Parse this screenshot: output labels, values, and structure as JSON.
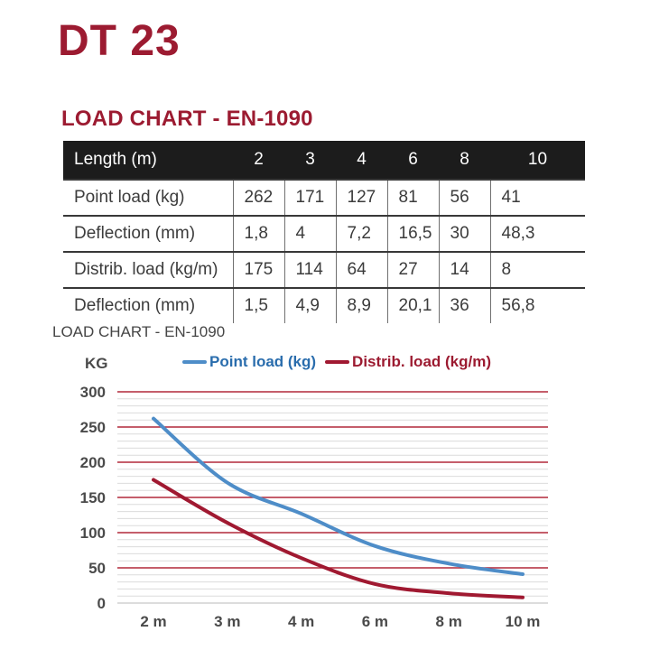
{
  "page": {
    "title": "DT 23",
    "section_heading": "LOAD CHART - EN-1090"
  },
  "colors": {
    "brand_maroon": "#9C1B31",
    "table_header_bg": "#1C1C1C",
    "axis_text_gray": "#4A4A4A"
  },
  "table": {
    "header": {
      "label": "Length (m)",
      "values": [
        "2",
        "3",
        "4",
        "6",
        "8",
        "10"
      ]
    },
    "rows": [
      {
        "label": "Point load (kg)",
        "values": [
          "262",
          "171",
          "127",
          "81",
          "56",
          "41"
        ]
      },
      {
        "label": "Deflection (mm)",
        "values": [
          "1,8",
          "4",
          "7,2",
          "16,5",
          "30",
          "48,3"
        ]
      },
      {
        "label": "Distrib. load (kg/m)",
        "values": [
          "175",
          "114",
          "64",
          "27",
          "14",
          "8"
        ]
      },
      {
        "label": "Deflection (mm)",
        "values": [
          "1,5",
          "4,9",
          "8,9",
          "20,1",
          "36",
          "56,8"
        ]
      }
    ]
  },
  "chart": {
    "title": "LOAD CHART - EN-1090",
    "y_axis_label": "KG"
  },
  "chart_data": {
    "type": "line",
    "title": "LOAD CHART - EN-1090",
    "ylabel": "KG",
    "xlabel": "",
    "categories": [
      "2 m",
      "3 m",
      "4 m",
      "6 m",
      "8 m",
      "10 m"
    ],
    "series": [
      {
        "name": "Point load (kg)",
        "values": [
          262,
          171,
          127,
          81,
          56,
          41
        ],
        "line_color": "#4E8DC8",
        "label_color": "#2A6DAD"
      },
      {
        "name": "Distrib. load (kg/m)",
        "values": [
          175,
          114,
          64,
          27,
          14,
          8
        ],
        "line_color": "#A01931",
        "label_color": "#9C1B31"
      }
    ],
    "ylim": [
      0,
      300
    ],
    "y_major_step": 50,
    "y_minor_step": 10,
    "grid": {
      "major_color": "#B2293A",
      "minor_color": "#DBDBDB",
      "zero_color": "#C6C6C6",
      "on": true
    },
    "legend_position": "top",
    "smooth": true
  }
}
